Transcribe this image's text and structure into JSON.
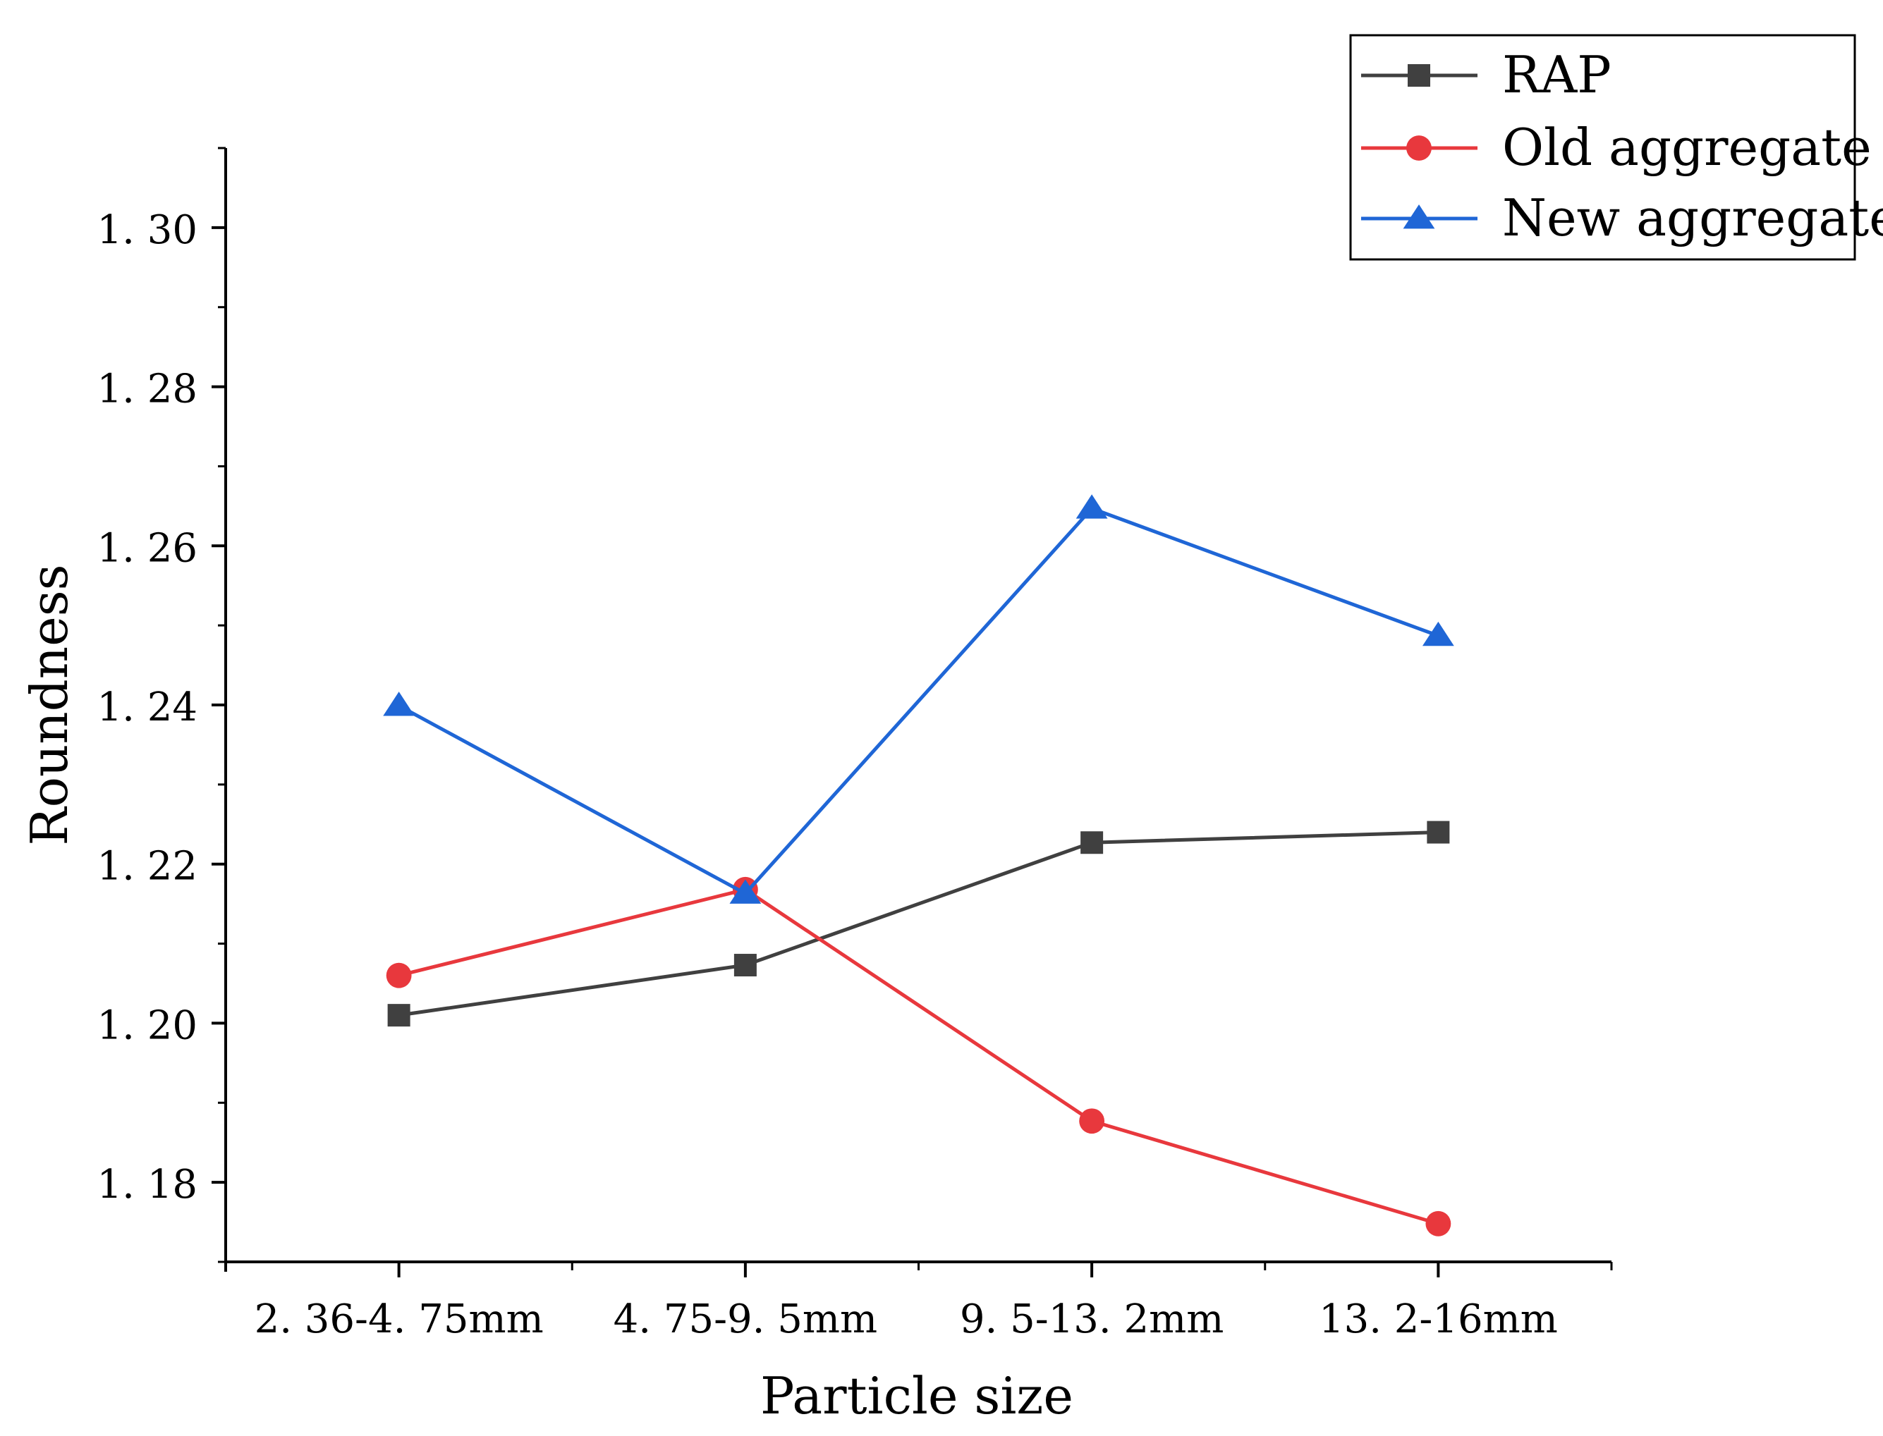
{
  "chart_data": {
    "type": "line",
    "title": "",
    "xlabel": "Particle size",
    "ylabel": "Roundness",
    "categories": [
      "2. 36-4. 75mm",
      "4. 75-9. 5mm",
      "9. 5-13. 2mm",
      "13. 2-16mm"
    ],
    "ylim": [
      1.17,
      1.31
    ],
    "yticks": [
      1.18,
      1.2,
      1.22,
      1.24,
      1.26,
      1.28,
      1.3
    ],
    "ytick_labels": [
      "1. 18",
      "1. 20",
      "1. 22",
      "1. 24",
      "1. 26",
      "1. 28",
      "1. 30"
    ],
    "grid": false,
    "legend_position": "top-right",
    "series": [
      {
        "name": "RAP",
        "color": "#404040",
        "marker": "square",
        "values": [
          1.201,
          1.2073,
          1.2227,
          1.224
        ]
      },
      {
        "name": "Old aggregate",
        "color": "#e8383d",
        "marker": "circle",
        "values": [
          1.206,
          1.2168,
          1.1877,
          1.1748
        ]
      },
      {
        "name": "New aggregate",
        "color": "#1f66d6",
        "marker": "triangle",
        "values": [
          1.2399,
          1.2163,
          1.2647,
          1.2487
        ]
      }
    ]
  }
}
